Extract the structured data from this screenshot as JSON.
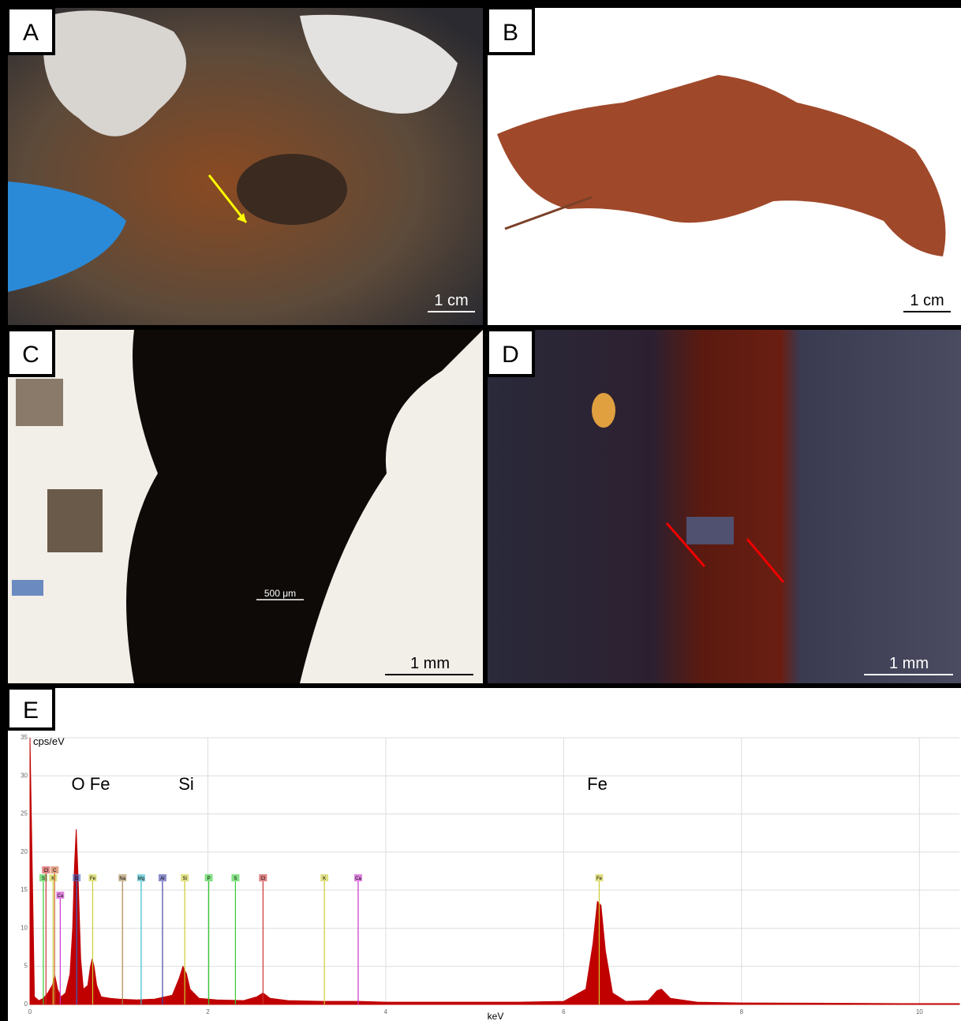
{
  "panels": [
    {
      "label": "A",
      "scale": "1 cm"
    },
    {
      "label": "B",
      "scale": "1 cm"
    },
    {
      "label": "C",
      "scale": "1 mm",
      "inset_scale": "500 μm"
    },
    {
      "label": "D",
      "scale": "1 mm"
    },
    {
      "label": "E"
    }
  ],
  "chart_data": {
    "type": "area",
    "y_label": "cps/eV",
    "x_label": "keV",
    "color": "#c00000",
    "annotations": [
      "O Fe",
      "Si",
      "Fe"
    ],
    "xlim": [
      0,
      10.45
    ],
    "xticks": [
      0,
      2,
      4,
      6,
      8,
      10
    ],
    "ylim": [
      0,
      35
    ],
    "yticks": [
      0,
      5,
      10,
      15,
      20,
      25,
      30,
      35
    ],
    "grid": true,
    "x": [
      0,
      0.05,
      0.1,
      0.15,
      0.2,
      0.25,
      0.28,
      0.31,
      0.35,
      0.4,
      0.45,
      0.48,
      0.5,
      0.52,
      0.54,
      0.57,
      0.6,
      0.65,
      0.68,
      0.7,
      0.72,
      0.75,
      0.8,
      0.9,
      1.0,
      1.2,
      1.4,
      1.6,
      1.68,
      1.72,
      1.76,
      1.8,
      1.9,
      2.1,
      2.4,
      2.55,
      2.62,
      2.7,
      2.9,
      3.3,
      3.7,
      4.0,
      4.5,
      5.0,
      5.5,
      6.0,
      6.25,
      6.33,
      6.38,
      6.42,
      6.47,
      6.55,
      6.7,
      6.95,
      7.05,
      7.1,
      7.2,
      7.5,
      8,
      9,
      10,
      10.45
    ],
    "values": [
      35,
      1,
      0.5,
      0.8,
      1.5,
      2.5,
      3.8,
      2,
      1,
      1.5,
      4,
      10,
      18,
      23,
      17,
      6,
      2,
      2.5,
      5,
      6,
      5,
      2.5,
      1,
      0.8,
      0.7,
      0.6,
      0.7,
      1.2,
      3.5,
      5,
      4,
      2,
      0.8,
      0.6,
      0.5,
      1,
      1.5,
      0.8,
      0.5,
      0.4,
      0.4,
      0.3,
      0.3,
      0.3,
      0.3,
      0.4,
      2,
      8,
      13.5,
      13,
      7,
      1.5,
      0.4,
      0.5,
      1.8,
      2,
      0.8,
      0.3,
      0.2,
      0.15,
      0.1,
      0.1
    ],
    "markers": [
      {
        "label": "S",
        "x": 0.15,
        "color": "#33cc33"
      },
      {
        "label": "Cl",
        "x": 0.18,
        "color": "#cc3333"
      },
      {
        "label": "K",
        "x": 0.26,
        "color": "#cccc33"
      },
      {
        "label": "C",
        "x": 0.277,
        "color": "#cc6633"
      },
      {
        "label": "Ca",
        "x": 0.34,
        "color": "#cc33cc"
      },
      {
        "label": "O",
        "x": 0.525,
        "color": "#3366cc"
      },
      {
        "label": "Fe",
        "x": 0.705,
        "color": "#cccc33"
      },
      {
        "label": "Na",
        "x": 1.04,
        "color": "#aa8855"
      },
      {
        "label": "Mg",
        "x": 1.25,
        "color": "#33bbcc"
      },
      {
        "label": "Al",
        "x": 1.49,
        "color": "#4444aa"
      },
      {
        "label": "Si",
        "x": 1.74,
        "color": "#cccc33"
      },
      {
        "label": "P",
        "x": 2.01,
        "color": "#33cc33"
      },
      {
        "label": "S",
        "x": 2.31,
        "color": "#33cc33"
      },
      {
        "label": "Cl",
        "x": 2.62,
        "color": "#cc3333"
      },
      {
        "label": "K",
        "x": 3.31,
        "color": "#cccc33"
      },
      {
        "label": "Ca",
        "x": 3.69,
        "color": "#cc33cc"
      },
      {
        "label": "Fe",
        "x": 6.4,
        "color": "#cccc33"
      }
    ]
  }
}
